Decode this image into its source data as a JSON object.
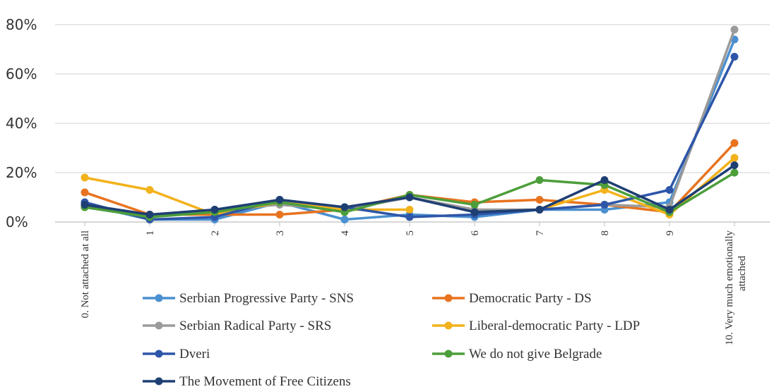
{
  "chart_data": {
    "type": "line",
    "title": "",
    "xlabel": "",
    "ylabel": "",
    "ylim": [
      0,
      80
    ],
    "y_ticks": [
      "0%",
      "20%",
      "40%",
      "60%",
      "80%"
    ],
    "y_tick_values": [
      0,
      20,
      40,
      60,
      80
    ],
    "grid": "horizontal",
    "legend_position": "bottom",
    "categories": [
      "0. Not attached at all",
      "1",
      "2",
      "3",
      "4",
      "5",
      "6",
      "7",
      "8",
      "9",
      "10. Very much emotionally attached"
    ],
    "series": [
      {
        "name": "Serbian Progressive Party - SNS",
        "color": "#4a90d0",
        "values": [
          7,
          1,
          1,
          8,
          1,
          3,
          2,
          5,
          5,
          8,
          74
        ]
      },
      {
        "name": "Democratic Party - DS",
        "color": "#e8731f",
        "values": [
          12,
          3,
          3,
          3,
          5,
          11,
          8,
          9,
          7,
          4,
          32
        ]
      },
      {
        "name": "Serbian Radical Party - SRS",
        "color": "#9b9b9b",
        "values": [
          6,
          2,
          5,
          7,
          5,
          10,
          5,
          5,
          7,
          6,
          78
        ]
      },
      {
        "name": "Liberal-democratic Party - LDP",
        "color": "#f2b21b",
        "values": [
          18,
          13,
          3,
          8,
          5,
          5,
          null,
          5,
          13,
          3,
          26
        ]
      },
      {
        "name": "Dveri",
        "color": "#2e56a8",
        "values": [
          8,
          1,
          2,
          9,
          6,
          2,
          3,
          5,
          7,
          13,
          67
        ]
      },
      {
        "name": "We do not give Belgrade",
        "color": "#4c9e3a",
        "values": [
          6,
          2,
          4,
          8,
          4,
          11,
          7,
          17,
          15,
          4,
          20
        ]
      },
      {
        "name": "The Movement of Free Citizens",
        "color": "#1e3f73",
        "values": [
          7,
          3,
          5,
          9,
          6,
          10,
          4,
          5,
          17,
          5,
          23
        ]
      }
    ]
  }
}
